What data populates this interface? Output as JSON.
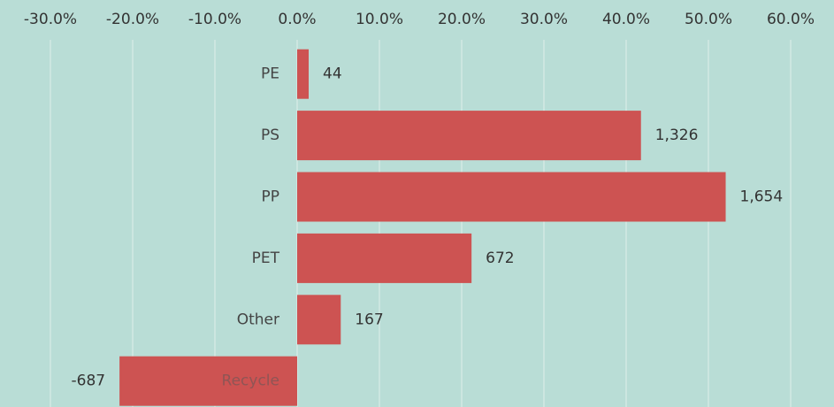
{
  "chart_data": {
    "type": "hbar",
    "categories": [
      "PE",
      "PS",
      "PP",
      "PET",
      "Other",
      "Recycle"
    ],
    "values": [
      1.4,
      41.8,
      52.1,
      21.2,
      5.3,
      -21.6
    ],
    "count_labels": [
      "44",
      "1,326",
      "1,654",
      "672",
      "167",
      "-687"
    ],
    "color": "#cd5352",
    "xlim": [
      -30,
      60
    ],
    "xticks": [
      {
        "value": -30,
        "label": "-30.0%"
      },
      {
        "value": -20,
        "label": "-20.0%"
      },
      {
        "value": -10,
        "label": "-10.0%"
      },
      {
        "value": 0,
        "label": "0.0%"
      },
      {
        "value": 10,
        "label": "10.0%"
      },
      {
        "value": 20,
        "label": "20.0%"
      },
      {
        "value": 30,
        "label": "30.0%"
      },
      {
        "value": 40,
        "label": "40.0%"
      },
      {
        "value": 50,
        "label": "50.0%"
      },
      {
        "value": 60,
        "label": "60.0%"
      }
    ],
    "grid": true
  }
}
